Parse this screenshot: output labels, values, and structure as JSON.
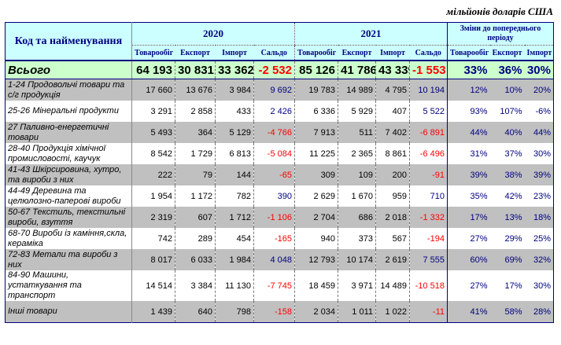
{
  "unit": "мільйонів доларів США",
  "header": {
    "code": "Код та найменування",
    "year1": "2020",
    "year2": "2021",
    "change": "Зміни до попереднього періоду",
    "sub": [
      "Товарообіг",
      "Експорт",
      "Імпорт",
      "Сальдо",
      "Товарообіг",
      "Експорт",
      "Імпорт",
      "Сальдо",
      "Товарообіг",
      "Експорт",
      "Імпорт"
    ]
  },
  "total": {
    "name": "Всього",
    "values": [
      "64 193",
      "30 831",
      "33 362",
      "-2 532",
      "85 126",
      "41 786",
      "43 339",
      "-1 553",
      "33%",
      "36%",
      "30%"
    ]
  },
  "rows": [
    {
      "name": "1-24 Продовольчі товари та с/г продукція",
      "values": [
        "17 660",
        "13 676",
        "3 984",
        "9 692",
        "19 783",
        "14 989",
        "4 795",
        "10 194",
        "12%",
        "10%",
        "20%"
      ]
    },
    {
      "name": "25-26 Мінеральні продукти",
      "values": [
        "3 291",
        "2 858",
        "433",
        "2 426",
        "6 336",
        "5 929",
        "407",
        "5 522",
        "93%",
        "107%",
        "-6%"
      ]
    },
    {
      "name": "27 Паливно-енергетичні товари",
      "values": [
        "5 493",
        "364",
        "5 129",
        "-4 766",
        "7 913",
        "511",
        "7 402",
        "-6 891",
        "44%",
        "40%",
        "44%"
      ]
    },
    {
      "name": "28-40 Продукція хімічної промисловості, каучук",
      "values": [
        "8 542",
        "1 729",
        "6 813",
        "-5 084",
        "11 225",
        "2 365",
        "8 861",
        "-6 496",
        "31%",
        "37%",
        "30%"
      ]
    },
    {
      "name": "41-43 Шкірсировина, хутро, та вироби з них",
      "values": [
        "222",
        "79",
        "144",
        "-65",
        "309",
        "109",
        "200",
        "-91",
        "39%",
        "38%",
        "39%"
      ]
    },
    {
      "name": "44-49 Деревина та целюлозно-паперові вироби",
      "values": [
        "1 954",
        "1 172",
        "782",
        "390",
        "2 629",
        "1 670",
        "959",
        "710",
        "35%",
        "42%",
        "23%"
      ]
    },
    {
      "name": "50-67 Текстиль, текстильні вироби, взуття",
      "values": [
        "2 319",
        "607",
        "1 712",
        "-1 106",
        "2 704",
        "686",
        "2 018",
        "-1 332",
        "17%",
        "13%",
        "18%"
      ]
    },
    {
      "name": "68-70 Вироби із каміння,скла, кераміка",
      "values": [
        "742",
        "289",
        "454",
        "-165",
        "940",
        "373",
        "567",
        "-194",
        "27%",
        "29%",
        "25%"
      ]
    },
    {
      "name": "72-83 Метали та вироби з них",
      "values": [
        "8 017",
        "6 033",
        "1 984",
        "4 048",
        "12 793",
        "10 174",
        "2 619",
        "7 555",
        "60%",
        "69%",
        "32%"
      ]
    },
    {
      "name": "84-90 Машини, устаткування та транспорт",
      "values": [
        "14 514",
        "3 384",
        "11 130",
        "-7 745",
        "18 459",
        "3 971",
        "14 489",
        "-10 518",
        "27%",
        "17%",
        "30%"
      ]
    },
    {
      "name": "Інші товари",
      "values": [
        "1 439",
        "640",
        "798",
        "-158",
        "2 034",
        "1 011",
        "1 022",
        "-11",
        "41%",
        "58%",
        "28%"
      ]
    }
  ]
}
